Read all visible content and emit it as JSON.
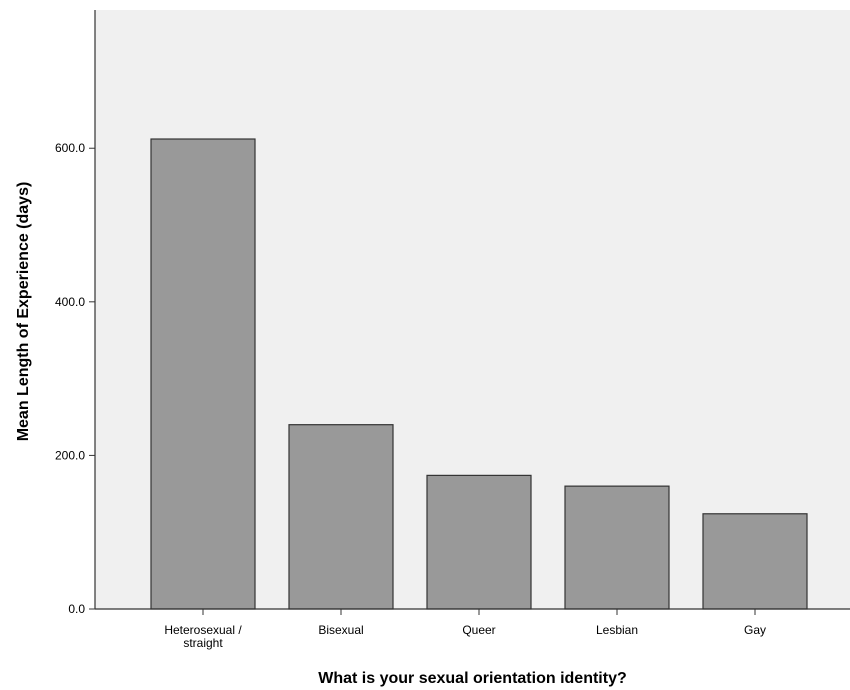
{
  "colors": {
    "plot_background": "#f0f0f0",
    "bar_fill": "#999999",
    "bar_stroke": "#333333",
    "axis": "#333333",
    "text": "#000000"
  },
  "chart_data": {
    "type": "bar",
    "title": "",
    "xlabel": "What is your sexual orientation identity?",
    "ylabel": "Mean Length of Experience (days)",
    "categories": [
      [
        "Heterosexual /",
        "straight"
      ],
      [
        "Bisexual"
      ],
      [
        "Queer"
      ],
      [
        "Lesbian"
      ],
      [
        "Gay"
      ]
    ],
    "values": [
      612,
      240,
      174,
      160,
      124
    ],
    "ylim": [
      0,
      780
    ],
    "yticks": [
      0,
      200,
      400,
      600
    ],
    "ytick_labels": [
      "0.0",
      "200.0",
      "400.0",
      "600.0"
    ],
    "grid": false,
    "legend": "none"
  }
}
